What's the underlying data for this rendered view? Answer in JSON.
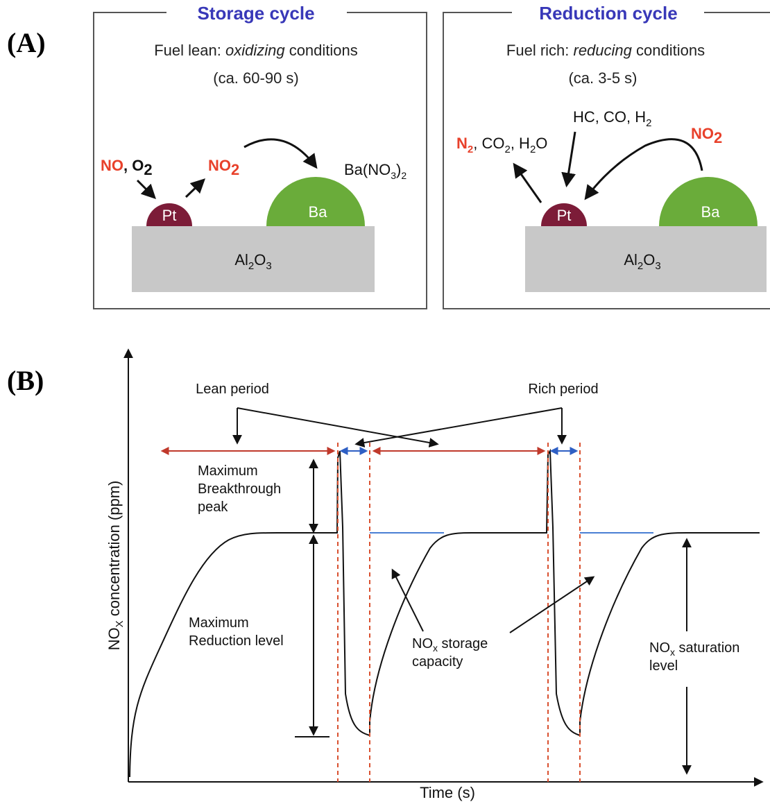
{
  "panel_a": {
    "label": "(A)",
    "storage": {
      "title": "Storage cycle",
      "condition_prefix": "Fuel lean: ",
      "condition_italic": "oxidizing",
      "condition_suffix": " conditions",
      "duration": "(ca. 60-90 s)",
      "reactant_no": "NO",
      "reactant_sep": ", ",
      "reactant_o2": "O",
      "reactant_o2_sub": "2",
      "product_no2": "NO",
      "product_no2_sub": "2",
      "stored": "Ba(NO",
      "stored_sub": "3",
      "stored_close": ")",
      "stored_sub2": "2",
      "pt": "Pt",
      "ba": "Ba",
      "support": "Al",
      "support_sub1": "2",
      "support_o": "O",
      "support_sub2": "3"
    },
    "reduction": {
      "title": "Reduction cycle",
      "condition_prefix": "Fuel rich: ",
      "condition_italic": "reducing",
      "condition_suffix": " conditions",
      "duration": "(ca. 3-5 s)",
      "reductants": "HC, CO, H",
      "reductants_sub": "2",
      "released_no2": "NO",
      "released_no2_sub": "2",
      "products_n": "N",
      "products_n_sub": "2",
      "products_rest": ", CO",
      "products_co_sub": "2",
      "products_h": ", H",
      "products_h_sub": "2",
      "products_o": "O",
      "pt": "Pt",
      "ba": "Ba",
      "support": "Al",
      "support_sub1": "2",
      "support_o": "O",
      "support_sub2": "3"
    },
    "colors": {
      "pt": "#7c1c38",
      "ba": "#6aac3a",
      "support": "#c8c8c8",
      "title": "#3838b8",
      "species": "#e8412b"
    }
  },
  "panel_b": {
    "label": "(B)",
    "y_axis": "NO",
    "y_axis_sub": "X",
    "y_axis_rest": " concentration (ppm)",
    "x_axis": "Time (s)",
    "annotations": {
      "lean_period": "Lean period",
      "rich_period": "Rich period",
      "max_breakthrough_1": "Maximum",
      "max_breakthrough_2": "Breakthrough",
      "max_breakthrough_3": "peak",
      "max_reduction_1": "Maximum",
      "max_reduction_2": "Reduction level",
      "storage_1": "NO",
      "storage_sub": "x",
      "storage_1_rest": " storage",
      "storage_2": "capacity",
      "saturation_1": "NO",
      "saturation_sub": "x",
      "saturation_1_rest": " saturation",
      "saturation_2": "level"
    },
    "colors": {
      "lean_arrow": "#c0392b",
      "rich_arrow": "#2e5fc4",
      "saturation_line": "#4a7fd4",
      "marker": "#d9502f"
    }
  }
}
